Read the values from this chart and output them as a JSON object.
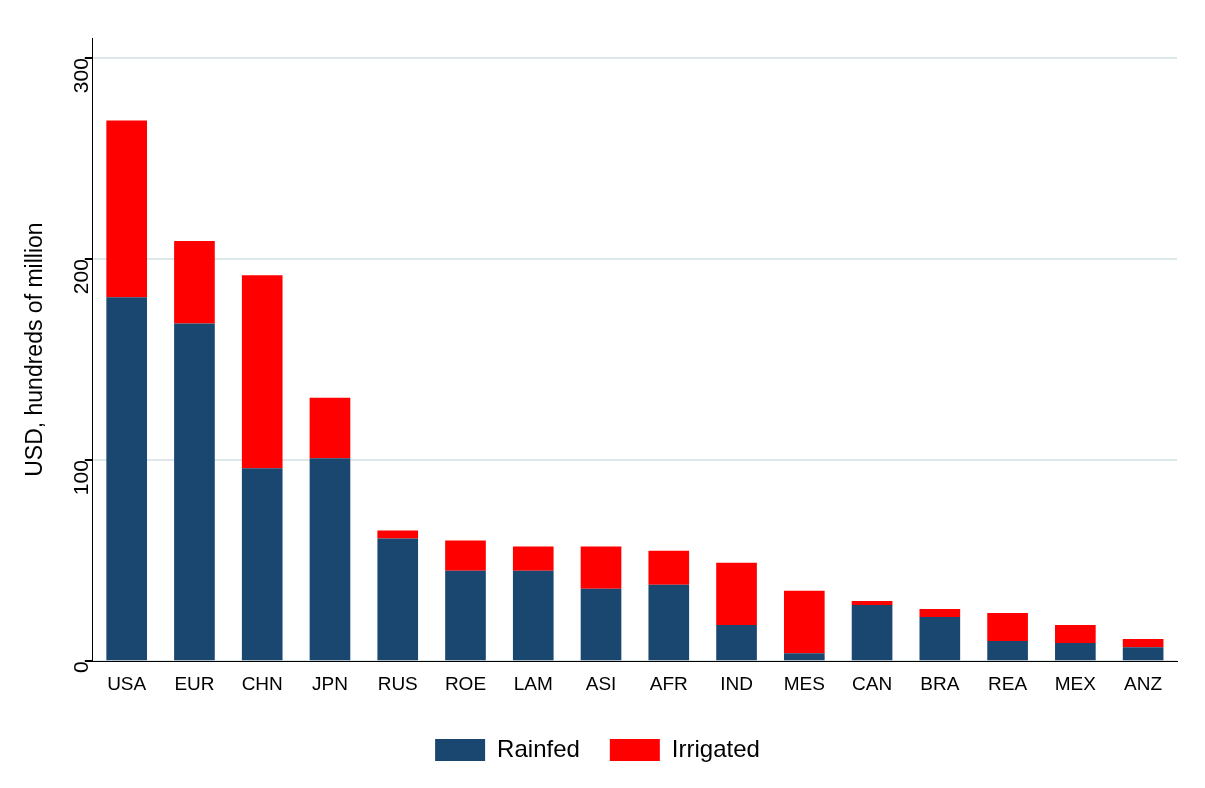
{
  "chart_data": {
    "type": "bar",
    "stacked": true,
    "ylabel": "USD, hundreds of million",
    "categories": [
      "USA",
      "EUR",
      "CHN",
      "JPN",
      "RUS",
      "ROE",
      "LAM",
      "ASI",
      "AFR",
      "IND",
      "MES",
      "CAN",
      "BRA",
      "REA",
      "MEX",
      "ANZ"
    ],
    "series": [
      {
        "name": "Rainfed",
        "color": "#1a476f",
        "values": [
          181,
          168,
          96,
          101,
          61,
          45,
          45,
          36,
          38,
          18,
          4,
          28,
          22,
          10,
          9,
          7
        ]
      },
      {
        "name": "Irrigated",
        "color": "#ff0000",
        "values": [
          88,
          41,
          96,
          30,
          4,
          15,
          12,
          21,
          17,
          31,
          31,
          2,
          4,
          14,
          9,
          4
        ]
      }
    ],
    "ylim": [
      0,
      310
    ],
    "yticks": [
      0,
      100,
      200,
      300
    ],
    "grid": "y",
    "legend": "bottom"
  }
}
